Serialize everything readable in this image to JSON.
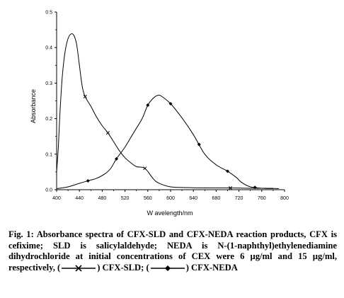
{
  "chart_data": {
    "type": "line",
    "xlabel": "W avelength/nm",
    "ylabel": "Absorbance",
    "xlim": [
      400,
      800
    ],
    "ylim": [
      0,
      0.5
    ],
    "x_ticks": [
      "400",
      "440",
      "480",
      "520",
      "560",
      "600",
      "640",
      "680",
      "720",
      "760",
      "800"
    ],
    "y_ticks": [
      "0.0",
      "0.1",
      "0.2",
      "0.3",
      "0.4",
      "0.5"
    ],
    "grid": false,
    "series": [
      {
        "name": "CFX-SLD",
        "marker": "x",
        "color": "#000000",
        "points": [
          [
            400,
            0.05
          ],
          [
            403,
            0.12
          ],
          [
            406,
            0.22
          ],
          [
            410,
            0.32
          ],
          [
            415,
            0.39
          ],
          [
            420,
            0.425
          ],
          [
            425,
            0.438
          ],
          [
            430,
            0.435
          ],
          [
            435,
            0.41
          ],
          [
            440,
            0.35
          ],
          [
            445,
            0.29
          ],
          [
            450,
            0.262
          ],
          [
            460,
            0.235
          ],
          [
            470,
            0.205
          ],
          [
            480,
            0.18
          ],
          [
            490,
            0.16
          ],
          [
            500,
            0.135
          ],
          [
            510,
            0.11
          ],
          [
            520,
            0.09
          ],
          [
            530,
            0.076
          ],
          [
            540,
            0.065
          ],
          [
            555,
            0.06
          ],
          [
            570,
            0.03
          ],
          [
            580,
            0.018
          ],
          [
            600,
            0.008
          ],
          [
            630,
            0.006
          ],
          [
            660,
            0.005
          ],
          [
            700,
            0.005
          ],
          [
            740,
            0.004
          ],
          [
            770,
            0.004
          ],
          [
            790,
            0.003
          ]
        ],
        "marker_x": [
          450,
          490,
          555,
          705
        ]
      },
      {
        "name": "CFX-NEDA",
        "marker": "diamond",
        "color": "#000000",
        "points": [
          [
            400,
            0.003
          ],
          [
            420,
            0.008
          ],
          [
            440,
            0.018
          ],
          [
            455,
            0.025
          ],
          [
            470,
            0.032
          ],
          [
            485,
            0.045
          ],
          [
            495,
            0.06
          ],
          [
            505,
            0.087
          ],
          [
            520,
            0.12
          ],
          [
            535,
            0.16
          ],
          [
            550,
            0.2
          ],
          [
            560,
            0.238
          ],
          [
            570,
            0.258
          ],
          [
            578,
            0.266
          ],
          [
            585,
            0.262
          ],
          [
            600,
            0.242
          ],
          [
            620,
            0.202
          ],
          [
            640,
            0.155
          ],
          [
            660,
            0.1
          ],
          [
            680,
            0.07
          ],
          [
            700,
            0.052
          ],
          [
            715,
            0.035
          ],
          [
            725,
            0.02
          ],
          [
            740,
            0.008
          ],
          [
            760,
            0.004
          ],
          [
            780,
            0.003
          ]
        ],
        "marker_x": [
          455,
          505,
          560,
          600,
          650,
          700,
          748
        ]
      }
    ]
  },
  "caption": {
    "text": "Fig. 1: Absorbance spectra of CFX-SLD and CFX-NEDA reaction products, CFX is cefixime; SLD is salicylaldehyde; NEDA is N-(1-naphthyl)ethylenediamine dihydrochloride at initial concentrations of CEX were 6 µg/ml and 15 µg/ml, respectively, (",
    "label_sld": ") CFX-SLD; (",
    "label_neda": ") CFX-NEDA"
  }
}
